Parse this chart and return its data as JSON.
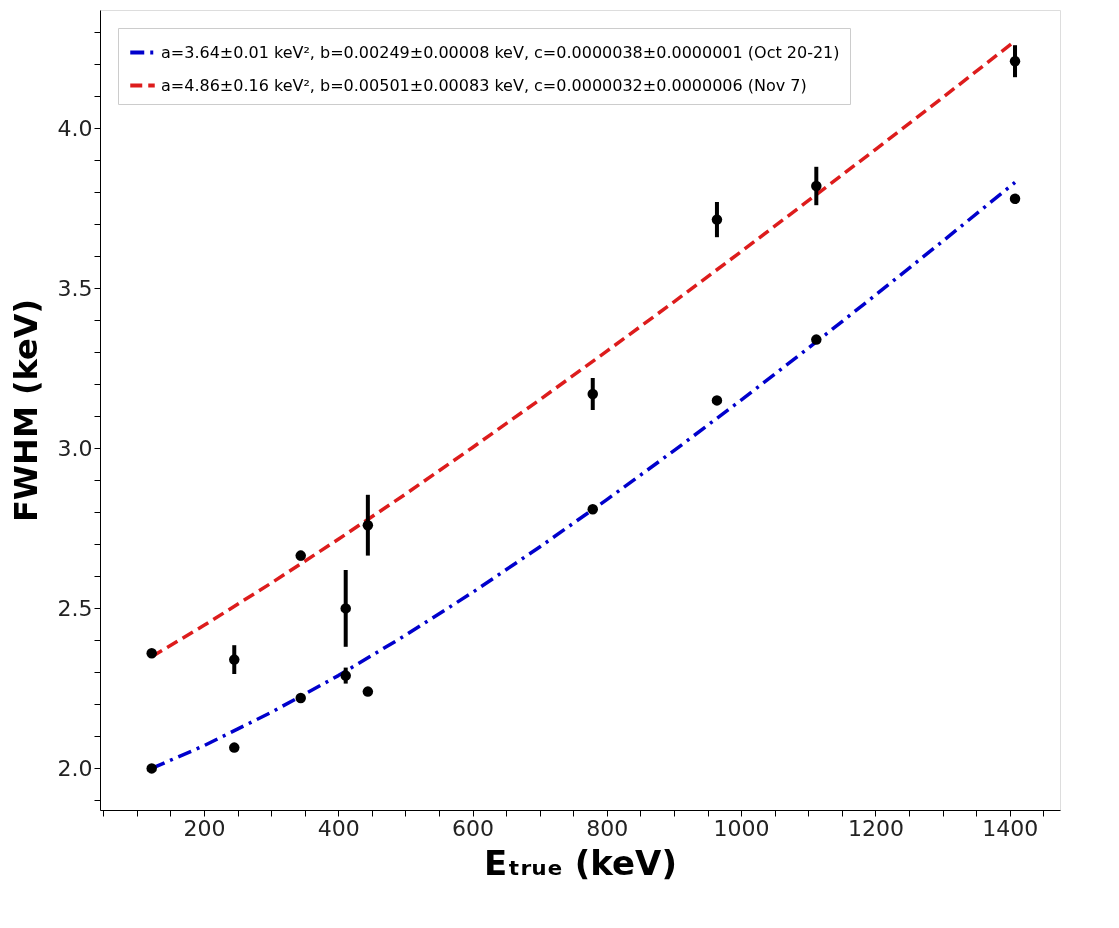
{
  "chart_data": {
    "type": "scatter",
    "xlabel": "Eₜᵣᵤₑ (keV)",
    "ylabel": "FWHM (keV)",
    "xlim": [
      45,
      1475
    ],
    "ylim": [
      1.87,
      4.37
    ],
    "xticks": [
      {
        "value": 50,
        "label": null
      },
      {
        "value": 100,
        "label": null
      },
      {
        "value": 150,
        "label": null
      },
      200,
      {
        "value": 250,
        "label": null
      },
      {
        "value": 300,
        "label": null
      },
      {
        "value": 350,
        "label": null
      },
      400,
      {
        "value": 450,
        "label": null
      },
      {
        "value": 500,
        "label": null
      },
      {
        "value": 550,
        "label": null
      },
      600,
      {
        "value": 650,
        "label": null
      },
      {
        "value": 700,
        "label": null
      },
      {
        "value": 750,
        "label": null
      },
      800,
      {
        "value": 850,
        "label": null
      },
      {
        "value": 900,
        "label": null
      },
      {
        "value": 950,
        "label": null
      },
      1000,
      {
        "value": 1050,
        "label": null
      },
      {
        "value": 1100,
        "label": null
      },
      {
        "value": 1150,
        "label": null
      },
      1200,
      {
        "value": 1250,
        "label": null
      },
      {
        "value": 1300,
        "label": null
      },
      {
        "value": 1350,
        "label": null
      },
      1400,
      {
        "value": 1450,
        "label": null
      }
    ],
    "yticks": [
      {
        "value": 1.9,
        "label": null
      },
      {
        "value": 2,
        "label": "2.0"
      },
      {
        "value": 2.1,
        "label": null
      },
      {
        "value": 2.2,
        "label": null
      },
      {
        "value": 2.3,
        "label": null
      },
      {
        "value": 2.4,
        "label": null
      },
      {
        "value": 2.5,
        "label": "2.5"
      },
      {
        "value": 2.6,
        "label": null
      },
      {
        "value": 2.7,
        "label": null
      },
      {
        "value": 2.8,
        "label": null
      },
      {
        "value": 2.9,
        "label": null
      },
      {
        "value": 3,
        "label": "3.0"
      },
      {
        "value": 3.1,
        "label": null
      },
      {
        "value": 3.2,
        "label": null
      },
      {
        "value": 3.3,
        "label": null
      },
      {
        "value": 3.4,
        "label": null
      },
      {
        "value": 3.5,
        "label": "3.5"
      },
      {
        "value": 3.6,
        "label": null
      },
      {
        "value": 3.7,
        "label": null
      },
      {
        "value": 3.8,
        "label": null
      },
      {
        "value": 3.9,
        "label": null
      },
      {
        "value": 4,
        "label": "4.0"
      },
      {
        "value": 4.1,
        "label": null
      },
      {
        "value": 4.2,
        "label": null
      },
      {
        "value": 4.3,
        "label": null
      }
    ],
    "grid": false,
    "legend": "top left",
    "marker": "circle",
    "series": [
      {
        "type": "line",
        "name": "a=3.64±0.01 keV², b=0.00249±0.00008 keV, c=0.0000038±0.0000001 (Oct 20-21)",
        "color": "#0000cc",
        "line_style": "dashdot",
        "marker": "none",
        "x": [
          122,
          200,
          300,
          400,
          500,
          600,
          700,
          800,
          900,
          1000,
          1100,
          1200,
          1300,
          1408
        ],
        "values": [
          2.0,
          2.071,
          2.175,
          2.29,
          2.416,
          2.55,
          2.692,
          2.84,
          2.993,
          3.151,
          3.313,
          3.479,
          3.647,
          3.831
        ]
      },
      {
        "type": "line",
        "name": "a=4.86±0.16 keV², b=0.00501±0.00083 keV, c=0.0000032±0.0000006 (Nov 7)",
        "color": "#dd1c1c",
        "line_style": "dashed",
        "marker": "none",
        "x": [
          122,
          200,
          300,
          400,
          500,
          600,
          700,
          800,
          900,
          1000,
          1100,
          1200,
          1300,
          1408
        ],
        "values": [
          2.349,
          2.447,
          2.579,
          2.716,
          2.857,
          3.003,
          3.152,
          3.304,
          3.458,
          3.615,
          3.774,
          3.934,
          4.096,
          4.273
        ]
      },
      {
        "color": "#000000",
        "x": [
          122,
          245,
          344,
          411,
          444,
          779,
          964,
          1112,
          1408
        ],
        "values": [
          2.0,
          2.065,
          2.22,
          2.29,
          2.24,
          2.81,
          3.15,
          3.34,
          3.78
        ],
        "errors": [
          null,
          null,
          0.01,
          0.025,
          null,
          null,
          null,
          null,
          null
        ]
      },
      {
        "color": "#000000",
        "x": [
          122,
          245,
          344,
          411,
          444,
          779,
          964,
          1112,
          1408
        ],
        "values": [
          2.36,
          2.34,
          2.665,
          2.5,
          2.76,
          3.17,
          3.715,
          3.82,
          4.21
        ],
        "errors": [
          0.01,
          0.045,
          0.015,
          0.12,
          0.095,
          0.05,
          0.055,
          0.06,
          0.05
        ]
      }
    ]
  }
}
